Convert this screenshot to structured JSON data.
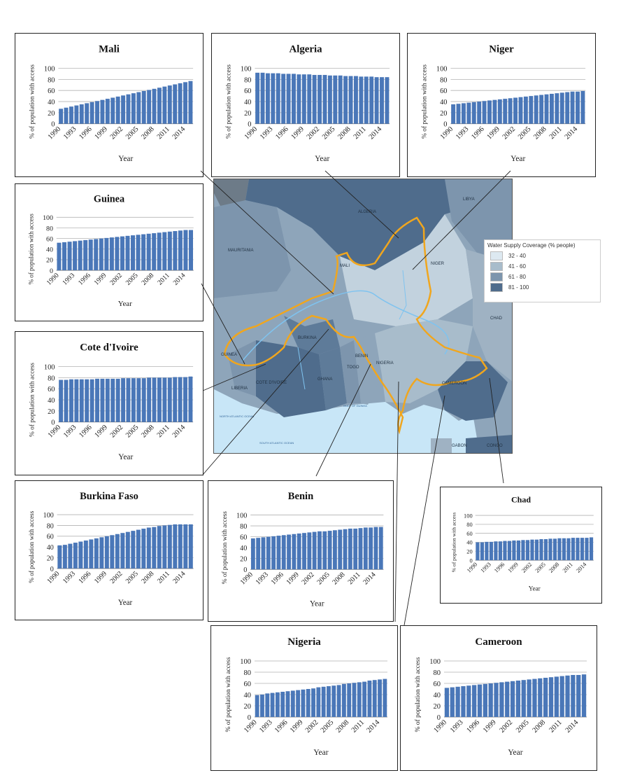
{
  "map": {
    "legend_title": "Water Supply Coverage (% people)",
    "legend": [
      {
        "label": "32 - 40",
        "color": "#dde9f1"
      },
      {
        "label": "41 - 60",
        "color": "#a8bccb"
      },
      {
        "label": "61 - 80",
        "color": "#7d95ad"
      },
      {
        "label": "81 - 100",
        "color": "#4f6c8c"
      }
    ],
    "countries": [
      "ALGERIA",
      "LIBYA",
      "MAURITANIA",
      "MALI",
      "NIGER",
      "CHAD",
      "GUINEA",
      "BURKINA",
      "COTE D'IVOIRE",
      "GHANA",
      "TOGO",
      "BENIN",
      "NIGERIA",
      "CAMEROON",
      "LIBERIA",
      "GABON",
      "CONGO"
    ],
    "seas": [
      "NORTH ATLANTIC OCEAN",
      "GULF OF GUINEA",
      "SOUTH ATLANTIC OCEAN"
    ],
    "basin_color": "#f0a61e",
    "land_color": "#9fb2c3",
    "ocean_color": "#c8e6f7"
  },
  "chart_data": [
    {
      "type": "bar",
      "title": "Mali",
      "xlabel": "Year",
      "ylabel": "% of population with access",
      "ylim": [
        0,
        100
      ],
      "yticks": [
        0,
        20,
        40,
        60,
        80,
        100
      ],
      "categories": [
        1990,
        1991,
        1992,
        1993,
        1994,
        1995,
        1996,
        1997,
        1998,
        1999,
        2000,
        2001,
        2002,
        2003,
        2004,
        2005,
        2006,
        2007,
        2008,
        2009,
        2010,
        2011,
        2012,
        2013,
        2014,
        2015
      ],
      "xtick_labels": [
        "1990",
        "1993",
        "1996",
        "1999",
        "2002",
        "2005",
        "2008",
        "2011",
        "2014"
      ],
      "values": [
        27,
        29,
        31,
        33,
        35,
        37,
        39,
        41,
        43,
        45,
        47,
        49,
        51,
        53,
        55,
        57,
        59,
        61,
        63,
        65,
        67,
        69,
        71,
        73,
        75,
        77
      ],
      "color": "#4a77b8"
    },
    {
      "type": "bar",
      "title": "Algeria",
      "xlabel": "Year",
      "ylabel": "% of population with access",
      "ylim": [
        0,
        100
      ],
      "yticks": [
        0,
        20,
        40,
        60,
        80,
        100
      ],
      "categories": [
        1990,
        1991,
        1992,
        1993,
        1994,
        1995,
        1996,
        1997,
        1998,
        1999,
        2000,
        2001,
        2002,
        2003,
        2004,
        2005,
        2006,
        2007,
        2008,
        2009,
        2010,
        2011,
        2012,
        2013,
        2014,
        2015
      ],
      "xtick_labels": [
        "1990",
        "1993",
        "1996",
        "1999",
        "2002",
        "2005",
        "2008",
        "2011",
        "2014"
      ],
      "values": [
        92,
        92,
        91,
        91,
        91,
        90,
        90,
        90,
        89,
        89,
        89,
        88,
        88,
        88,
        87,
        87,
        87,
        86,
        86,
        86,
        85,
        85,
        85,
        84,
        84,
        84
      ],
      "color": "#4a77b8"
    },
    {
      "type": "bar",
      "title": "Niger",
      "xlabel": "Year",
      "ylabel": "% of population with access",
      "ylim": [
        0,
        100
      ],
      "yticks": [
        0,
        20,
        40,
        60,
        80,
        100
      ],
      "categories": [
        1990,
        1991,
        1992,
        1993,
        1994,
        1995,
        1996,
        1997,
        1998,
        1999,
        2000,
        2001,
        2002,
        2003,
        2004,
        2005,
        2006,
        2007,
        2008,
        2009,
        2010,
        2011,
        2012,
        2013,
        2014,
        2015
      ],
      "xtick_labels": [
        "1990",
        "1993",
        "1996",
        "1999",
        "2002",
        "2005",
        "2008",
        "2011",
        "2014"
      ],
      "values": [
        35,
        36,
        37,
        38,
        39,
        40,
        41,
        42,
        43,
        44,
        45,
        46,
        47,
        48,
        49,
        50,
        51,
        52,
        53,
        54,
        55,
        56,
        57,
        58,
        58,
        59
      ],
      "color": "#4a77b8"
    },
    {
      "type": "bar",
      "title": "Guinea",
      "xlabel": "Year",
      "ylabel": "% of population with access",
      "ylim": [
        0,
        100
      ],
      "yticks": [
        0,
        20,
        40,
        60,
        80,
        100
      ],
      "categories": [
        1990,
        1991,
        1992,
        1993,
        1994,
        1995,
        1996,
        1997,
        1998,
        1999,
        2000,
        2001,
        2002,
        2003,
        2004,
        2005,
        2006,
        2007,
        2008,
        2009,
        2010,
        2011,
        2012,
        2013,
        2014,
        2015
      ],
      "xtick_labels": [
        "1990",
        "1993",
        "1996",
        "1999",
        "2002",
        "2005",
        "2008",
        "2011",
        "2014"
      ],
      "values": [
        52,
        53,
        54,
        55,
        56,
        57,
        58,
        59,
        60,
        61,
        62,
        63,
        64,
        65,
        66,
        67,
        68,
        69,
        70,
        71,
        72,
        73,
        74,
        75,
        76,
        76
      ],
      "color": "#4a77b8"
    },
    {
      "type": "bar",
      "title": "Cote d'Ivoire",
      "xlabel": "Year",
      "ylabel": "% of population with access",
      "ylim": [
        0,
        100
      ],
      "yticks": [
        0,
        20,
        40,
        60,
        80,
        100
      ],
      "categories": [
        1990,
        1991,
        1992,
        1993,
        1994,
        1995,
        1996,
        1997,
        1998,
        1999,
        2000,
        2001,
        2002,
        2003,
        2004,
        2005,
        2006,
        2007,
        2008,
        2009,
        2010,
        2011,
        2012,
        2013,
        2014,
        2015
      ],
      "xtick_labels": [
        "1990",
        "1993",
        "1996",
        "1999",
        "2002",
        "2005",
        "2008",
        "2011",
        "2014"
      ],
      "values": [
        76,
        76,
        77,
        77,
        77,
        77,
        77,
        78,
        78,
        78,
        78,
        78,
        79,
        79,
        79,
        79,
        79,
        80,
        80,
        80,
        80,
        80,
        81,
        81,
        81,
        82
      ],
      "color": "#4a77b8"
    },
    {
      "type": "bar",
      "title": "Burkina Faso",
      "xlabel": "Year",
      "ylabel": "% of population with access",
      "ylim": [
        0,
        100
      ],
      "yticks": [
        0,
        20,
        40,
        60,
        80,
        100
      ],
      "categories": [
        1990,
        1991,
        1992,
        1993,
        1994,
        1995,
        1996,
        1997,
        1998,
        1999,
        2000,
        2001,
        2002,
        2003,
        2004,
        2005,
        2006,
        2007,
        2008,
        2009,
        2010,
        2011,
        2012,
        2013,
        2014,
        2015
      ],
      "xtick_labels": [
        "1990",
        "1993",
        "1996",
        "1999",
        "2002",
        "2005",
        "2008",
        "2011",
        "2014"
      ],
      "values": [
        43,
        44,
        46,
        48,
        50,
        52,
        54,
        56,
        58,
        60,
        62,
        64,
        66,
        68,
        70,
        72,
        74,
        76,
        77,
        79,
        80,
        81,
        82,
        82,
        82,
        82
      ],
      "color": "#4a77b8"
    },
    {
      "type": "bar",
      "title": "Benin",
      "xlabel": "Year",
      "ylabel": "% of population with access",
      "ylim": [
        0,
        100
      ],
      "yticks": [
        0,
        20,
        40,
        60,
        80,
        100
      ],
      "categories": [
        1990,
        1991,
        1992,
        1993,
        1994,
        1995,
        1996,
        1997,
        1998,
        1999,
        2000,
        2001,
        2002,
        2003,
        2004,
        2005,
        2006,
        2007,
        2008,
        2009,
        2010,
        2011,
        2012,
        2013,
        2014,
        2015
      ],
      "xtick_labels": [
        "1990",
        "1993",
        "1996",
        "1999",
        "2002",
        "2005",
        "2008",
        "2011",
        "2014"
      ],
      "values": [
        57,
        58,
        59,
        60,
        61,
        62,
        63,
        64,
        65,
        66,
        67,
        68,
        69,
        70,
        70,
        71,
        72,
        73,
        74,
        75,
        75,
        76,
        77,
        77,
        78,
        78
      ],
      "color": "#4a77b8"
    },
    {
      "type": "bar",
      "title": "Chad",
      "xlabel": "Year",
      "ylabel": "% of population with access",
      "ylim": [
        0,
        100
      ],
      "yticks": [
        0,
        20,
        40,
        60,
        80,
        100
      ],
      "categories": [
        1990,
        1991,
        1992,
        1993,
        1994,
        1995,
        1996,
        1997,
        1998,
        1999,
        2000,
        2001,
        2002,
        2003,
        2004,
        2005,
        2006,
        2007,
        2008,
        2009,
        2010,
        2011,
        2012,
        2013,
        2014,
        2015
      ],
      "xtick_labels": [
        "1990",
        "1993",
        "1996",
        "1999",
        "2002",
        "2005",
        "2008",
        "2011",
        "2014"
      ],
      "values": [
        40,
        40,
        41,
        41,
        42,
        42,
        43,
        43,
        44,
        44,
        45,
        45,
        46,
        46,
        47,
        47,
        48,
        48,
        49,
        49,
        49,
        50,
        50,
        50,
        50,
        51
      ],
      "color": "#4a77b8"
    },
    {
      "type": "bar",
      "title": "Nigeria",
      "xlabel": "Year",
      "ylabel": "% of population with access",
      "ylim": [
        0,
        100
      ],
      "yticks": [
        0,
        20,
        40,
        60,
        80,
        100
      ],
      "categories": [
        1990,
        1991,
        1992,
        1993,
        1994,
        1995,
        1996,
        1997,
        1998,
        1999,
        2000,
        2001,
        2002,
        2003,
        2004,
        2005,
        2006,
        2007,
        2008,
        2009,
        2010,
        2011,
        2012,
        2013,
        2014,
        2015
      ],
      "xtick_labels": [
        "1990",
        "1993",
        "1996",
        "1999",
        "2002",
        "2005",
        "2008",
        "2011",
        "2014"
      ],
      "values": [
        39,
        40,
        42,
        43,
        44,
        45,
        46,
        47,
        48,
        49,
        50,
        51,
        53,
        54,
        55,
        56,
        57,
        59,
        60,
        61,
        62,
        63,
        65,
        66,
        67,
        68
      ],
      "color": "#4a77b8"
    },
    {
      "type": "bar",
      "title": "Cameroon",
      "xlabel": "Year",
      "ylabel": "% of population with access",
      "ylim": [
        0,
        100
      ],
      "yticks": [
        0,
        20,
        40,
        60,
        80,
        100
      ],
      "categories": [
        1990,
        1991,
        1992,
        1993,
        1994,
        1995,
        1996,
        1997,
        1998,
        1999,
        2000,
        2001,
        2002,
        2003,
        2004,
        2005,
        2006,
        2007,
        2008,
        2009,
        2010,
        2011,
        2012,
        2013,
        2014,
        2015
      ],
      "xtick_labels": [
        "1990",
        "1993",
        "1996",
        "1999",
        "2002",
        "2005",
        "2008",
        "2011",
        "2014"
      ],
      "values": [
        52,
        53,
        54,
        55,
        56,
        57,
        58,
        59,
        60,
        61,
        62,
        63,
        64,
        65,
        66,
        67,
        68,
        69,
        70,
        71,
        72,
        73,
        74,
        75,
        75,
        76
      ],
      "color": "#4a77b8"
    }
  ]
}
